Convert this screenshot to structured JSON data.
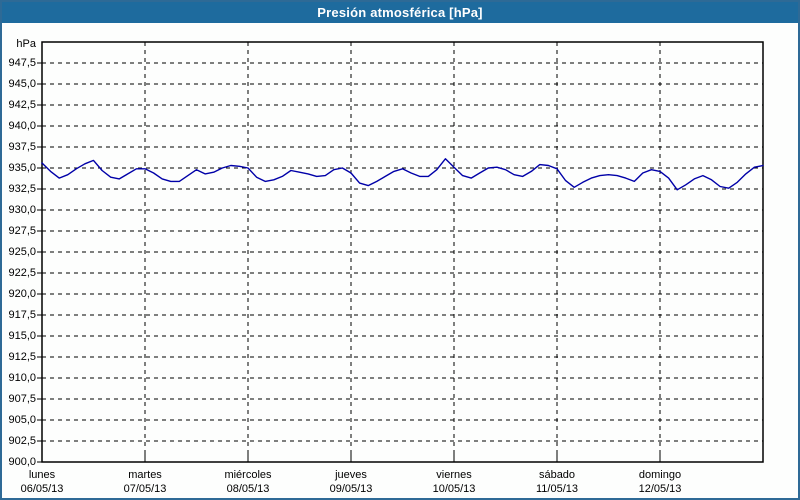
{
  "title": "Presión atmosférica [hPa]",
  "chart_data": {
    "type": "line",
    "title": "Presión atmosférica [hPa]",
    "grid": "dashed",
    "legend": "none",
    "y_axis": {
      "unit": "hPa",
      "min": 900,
      "max": 950,
      "tick_step": 2.5,
      "tick_labels": [
        "947,5",
        "945,0",
        "942,5",
        "940,0",
        "937,5",
        "935,0",
        "932,5",
        "930,0",
        "927,5",
        "925,0",
        "922,5",
        "920,0",
        "917,5",
        "915,0",
        "912,5",
        "910,0",
        "907,5",
        "905,0",
        "902,5",
        "900,0"
      ],
      "tick_values": [
        947.5,
        945.0,
        942.5,
        940.0,
        937.5,
        935.0,
        932.5,
        930.0,
        927.5,
        925.0,
        922.5,
        920.0,
        917.5,
        915.0,
        912.5,
        910.0,
        907.5,
        905.0,
        902.5,
        900.0
      ]
    },
    "x_axis": {
      "days": [
        {
          "name": "lunes",
          "date": "06/05/13"
        },
        {
          "name": "martes",
          "date": "07/05/13"
        },
        {
          "name": "miércoles",
          "date": "08/05/13"
        },
        {
          "name": "jueves",
          "date": "09/05/13"
        },
        {
          "name": "viernes",
          "date": "10/05/13"
        },
        {
          "name": "sábado",
          "date": "11/05/13"
        },
        {
          "name": "domingo",
          "date": "12/05/13"
        }
      ],
      "total_hours": 168
    },
    "series": [
      {
        "name": "Presión atmosférica",
        "color": "#0000a8",
        "sample_interval_hours": 2,
        "values": [
          935.6,
          934.6,
          933.8,
          934.2,
          934.9,
          935.5,
          935.9,
          934.7,
          933.9,
          933.7,
          934.3,
          934.9,
          934.9,
          934.4,
          933.7,
          933.4,
          933.4,
          934.1,
          934.8,
          934.3,
          934.5,
          935.0,
          935.3,
          935.2,
          935.0,
          933.9,
          933.4,
          933.6,
          934.0,
          934.7,
          934.5,
          934.3,
          934.0,
          934.1,
          934.8,
          935.0,
          934.4,
          933.2,
          932.9,
          933.4,
          934.0,
          934.6,
          934.9,
          934.4,
          934.0,
          934.0,
          934.8,
          936.1,
          935.1,
          934.1,
          933.8,
          934.4,
          935.0,
          935.1,
          934.8,
          934.2,
          934.0,
          934.6,
          935.4,
          935.3,
          934.9,
          933.5,
          932.7,
          933.3,
          933.8,
          934.1,
          934.2,
          934.1,
          933.8,
          933.4,
          934.4,
          934.8,
          934.6,
          933.8,
          932.4,
          933.0,
          933.7,
          934.1,
          933.6,
          932.8,
          932.6,
          933.3,
          934.3,
          935.1,
          935.3
        ]
      }
    ],
    "colors": {
      "titlebar_bg": "#1e6b9e",
      "titlebar_text": "#ffffff",
      "window_border": "#2e6a96",
      "plot_border": "#000000",
      "gridline": "#000000",
      "background": "#fdfefd"
    }
  }
}
